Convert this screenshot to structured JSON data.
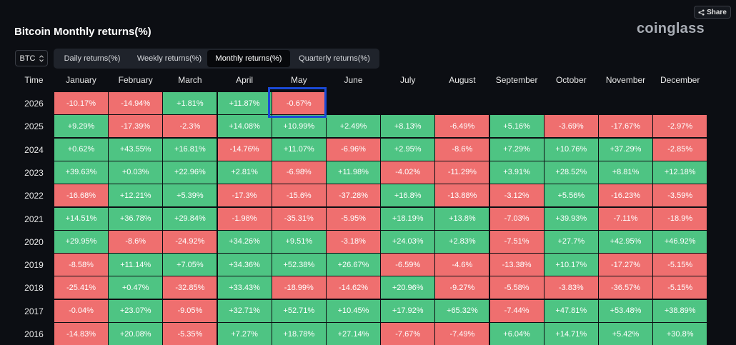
{
  "header": {
    "share_label": "Share",
    "title": "Bitcoin Monthly returns(%)",
    "brand": "coinglass"
  },
  "controls": {
    "asset": "BTC",
    "tabs": [
      "Daily returns(%)",
      "Weekly returns(%)",
      "Monthly returns(%)",
      "Quarterly returns(%)"
    ],
    "active_tab": 2
  },
  "colors": {
    "positive": "#4ec483",
    "negative": "#ef6f6f",
    "highlight": "#1a49d6"
  },
  "chart_data": {
    "type": "heatmap",
    "title": "Bitcoin Monthly returns(%)",
    "row_header": "Time",
    "columns": [
      "January",
      "February",
      "March",
      "April",
      "May",
      "June",
      "July",
      "August",
      "September",
      "October",
      "November",
      "December"
    ],
    "rows": [
      {
        "year": "2026",
        "values": [
          "-10.17%",
          "-14.94%",
          "+1.81%",
          "+11.87%",
          "-0.67%",
          "",
          "",
          "",
          "",
          "",
          "",
          ""
        ]
      },
      {
        "year": "2025",
        "values": [
          "+9.29%",
          "-17.39%",
          "-2.3%",
          "+14.08%",
          "+10.99%",
          "+2.49%",
          "+8.13%",
          "-6.49%",
          "+5.16%",
          "-3.69%",
          "-17.67%",
          "-2.97%"
        ]
      },
      {
        "year": "2024",
        "values": [
          "+0.62%",
          "+43.55%",
          "+16.81%",
          "-14.76%",
          "+11.07%",
          "-6.96%",
          "+2.95%",
          "-8.6%",
          "+7.29%",
          "+10.76%",
          "+37.29%",
          "-2.85%"
        ]
      },
      {
        "year": "2023",
        "values": [
          "+39.63%",
          "+0.03%",
          "+22.96%",
          "+2.81%",
          "-6.98%",
          "+11.98%",
          "-4.02%",
          "-11.29%",
          "+3.91%",
          "+28.52%",
          "+8.81%",
          "+12.18%"
        ]
      },
      {
        "year": "2022",
        "values": [
          "-16.68%",
          "+12.21%",
          "+5.39%",
          "-17.3%",
          "-15.6%",
          "-37.28%",
          "+16.8%",
          "-13.88%",
          "-3.12%",
          "+5.56%",
          "-16.23%",
          "-3.59%"
        ]
      },
      {
        "year": "2021",
        "values": [
          "+14.51%",
          "+36.78%",
          "+29.84%",
          "-1.98%",
          "-35.31%",
          "-5.95%",
          "+18.19%",
          "+13.8%",
          "-7.03%",
          "+39.93%",
          "-7.11%",
          "-18.9%"
        ]
      },
      {
        "year": "2020",
        "values": [
          "+29.95%",
          "-8.6%",
          "-24.92%",
          "+34.26%",
          "+9.51%",
          "-3.18%",
          "+24.03%",
          "+2.83%",
          "-7.51%",
          "+27.7%",
          "+42.95%",
          "+46.92%"
        ]
      },
      {
        "year": "2019",
        "values": [
          "-8.58%",
          "+11.14%",
          "+7.05%",
          "+34.36%",
          "+52.38%",
          "+26.67%",
          "-6.59%",
          "-4.6%",
          "-13.38%",
          "+10.17%",
          "-17.27%",
          "-5.15%"
        ]
      },
      {
        "year": "2018",
        "values": [
          "-25.41%",
          "+0.47%",
          "-32.85%",
          "+33.43%",
          "-18.99%",
          "-14.62%",
          "+20.96%",
          "-9.27%",
          "-5.58%",
          "-3.83%",
          "-36.57%",
          "-5.15%"
        ]
      },
      {
        "year": "2017",
        "values": [
          "-0.04%",
          "+23.07%",
          "-9.05%",
          "+32.71%",
          "+52.71%",
          "+10.45%",
          "+17.92%",
          "+65.32%",
          "-7.44%",
          "+47.81%",
          "+53.48%",
          "+38.89%"
        ]
      },
      {
        "year": "2016",
        "values": [
          "-14.83%",
          "+20.08%",
          "-5.35%",
          "+7.27%",
          "+18.78%",
          "+27.14%",
          "-7.67%",
          "-7.49%",
          "+6.04%",
          "+14.71%",
          "+5.42%",
          "+30.8%"
        ]
      }
    ],
    "highlighted_cell": {
      "year": "2026",
      "month": "May"
    }
  }
}
